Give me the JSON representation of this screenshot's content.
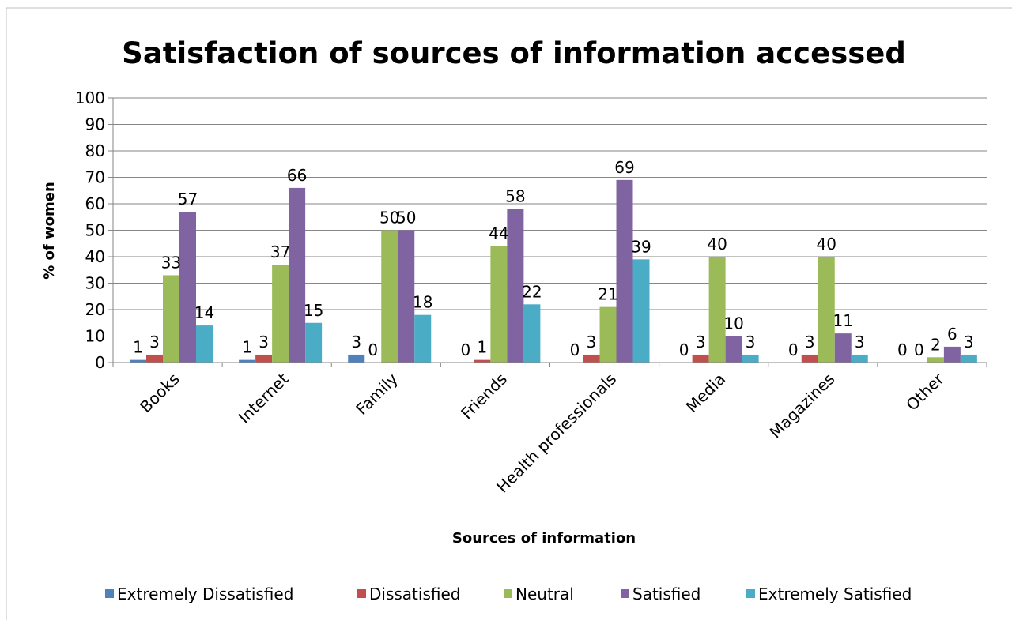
{
  "chart_data": {
    "type": "bar",
    "title": "Satisfaction of sources of information accessed",
    "xlabel": "Sources of information",
    "ylabel": "% of women",
    "ylim": [
      0,
      100
    ],
    "yticks": [
      0,
      10,
      20,
      30,
      40,
      50,
      60,
      70,
      80,
      90,
      100
    ],
    "grid": true,
    "legend_position": "bottom",
    "categories": [
      "Books",
      "Internet",
      "Family",
      "Friends",
      "Health professionals",
      "Media",
      "Magazines",
      "Other"
    ],
    "series": [
      {
        "name": "Extremely Dissatisfied",
        "color": "#4F81BD",
        "values": [
          1,
          1,
          3,
          0,
          0,
          0,
          0,
          0
        ]
      },
      {
        "name": "Dissatisfied",
        "color": "#C0504D",
        "values": [
          3,
          3,
          0,
          1,
          3,
          3,
          3,
          0
        ]
      },
      {
        "name": "Neutral",
        "color": "#9BBB59",
        "values": [
          33,
          37,
          50,
          44,
          21,
          40,
          40,
          2
        ]
      },
      {
        "name": "Satisfied",
        "color": "#8064A2",
        "values": [
          57,
          66,
          50,
          58,
          69,
          10,
          11,
          6
        ]
      },
      {
        "name": "Extremely Satisfied",
        "color": "#4BACC6",
        "values": [
          14,
          15,
          18,
          22,
          39,
          3,
          3,
          3
        ]
      }
    ]
  }
}
